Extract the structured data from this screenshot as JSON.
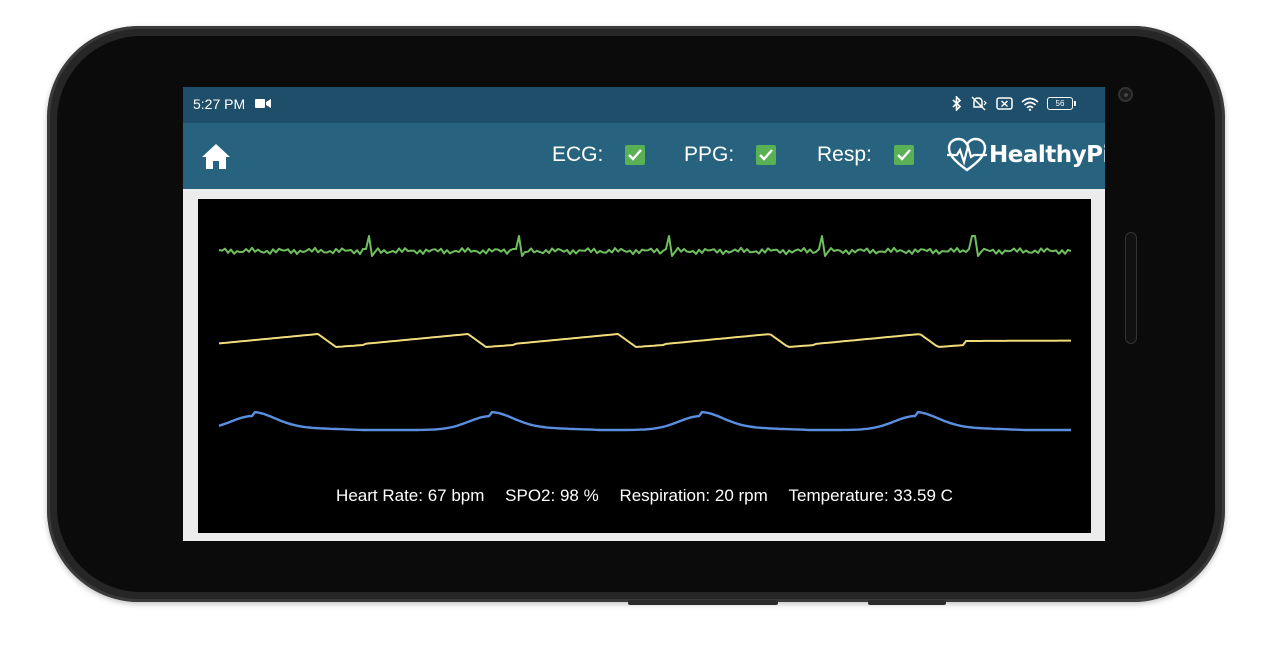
{
  "status_bar": {
    "time": "5:27 PM",
    "icons": [
      "video-camera-icon",
      "bluetooth-icon",
      "mute-vibrate-icon",
      "no-sim-icon",
      "wifi-icon",
      "battery-icon"
    ],
    "battery_level": "56"
  },
  "toolbar": {
    "home_icon": "home-icon",
    "toggles": [
      {
        "label": "ECG:",
        "checked": true
      },
      {
        "label": "PPG:",
        "checked": true
      },
      {
        "label": "Resp:",
        "checked": true
      }
    ],
    "brand_name": "HealthyPi",
    "brand_icon": "heart-pulse-icon"
  },
  "colors": {
    "status_bar": "#1e4e69",
    "toolbar": "#27637f",
    "checkbox": "#5ab055",
    "ecg_trace": "#6fbf5f",
    "ppg_trace": "#f0dc7a",
    "resp_trace": "#5a8fe0",
    "plot_background": "#000000"
  },
  "vitals": {
    "heart_rate": "Heart Rate: 67 bpm",
    "spo2": "SPO2: 98 %",
    "respiration": "Respiration: 20 rpm",
    "temperature": "Temperature: 33.59 C"
  }
}
